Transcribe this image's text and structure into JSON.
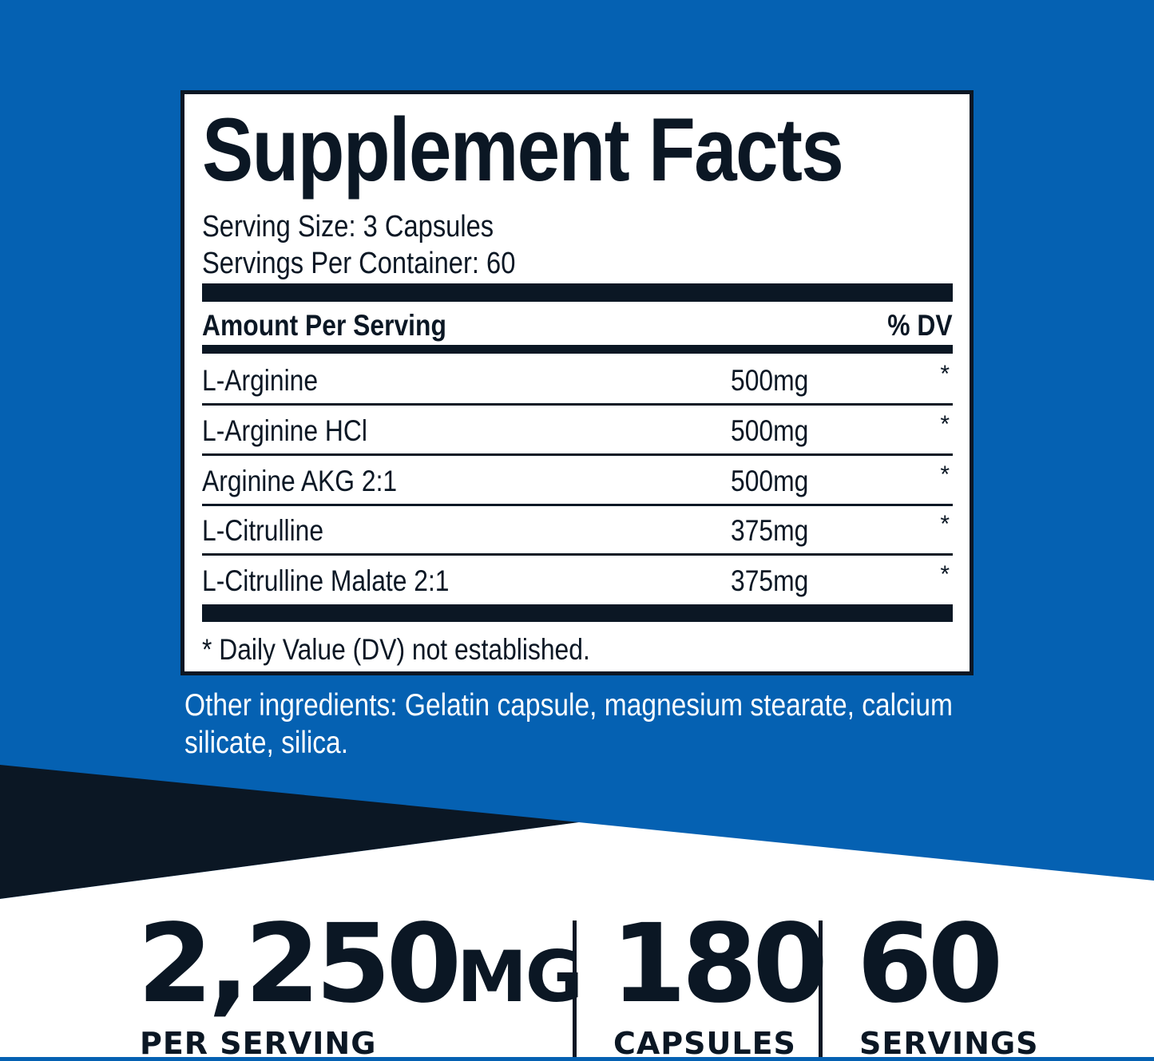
{
  "colors": {
    "background_blue": "#0561b2",
    "dark_navy": "#0b1724",
    "white": "#ffffff"
  },
  "facts": {
    "title": "Supplement Facts",
    "serving_size": "Serving Size: 3 Capsules",
    "servings_per_container": "Servings Per Container: 60",
    "header": {
      "amount": "Amount Per Serving",
      "dv": "% DV"
    },
    "rows": [
      {
        "name": "L-Arginine",
        "amount": "500mg",
        "dv": "*"
      },
      {
        "name": "L-Arginine HCl",
        "amount": "500mg",
        "dv": "*"
      },
      {
        "name": "Arginine AKG 2:1",
        "amount": "500mg",
        "dv": "*"
      },
      {
        "name": "L-Citrulline",
        "amount": "375mg",
        "dv": "*"
      },
      {
        "name": "L-Citrulline Malate 2:1",
        "amount": "375mg",
        "dv": "*"
      }
    ],
    "footnote": "* Daily Value (DV) not established."
  },
  "other_ingredients": {
    "line1": "Other ingredients: Gelatin capsule, magnesium stearate, calcium",
    "line2": "silicate, silica."
  },
  "stats": [
    {
      "value": "2,250",
      "unit": "MG",
      "label": "PER SERVING"
    },
    {
      "value": "180",
      "label": "CAPSULES"
    },
    {
      "value": "60",
      "label": "SERVINGS"
    }
  ]
}
